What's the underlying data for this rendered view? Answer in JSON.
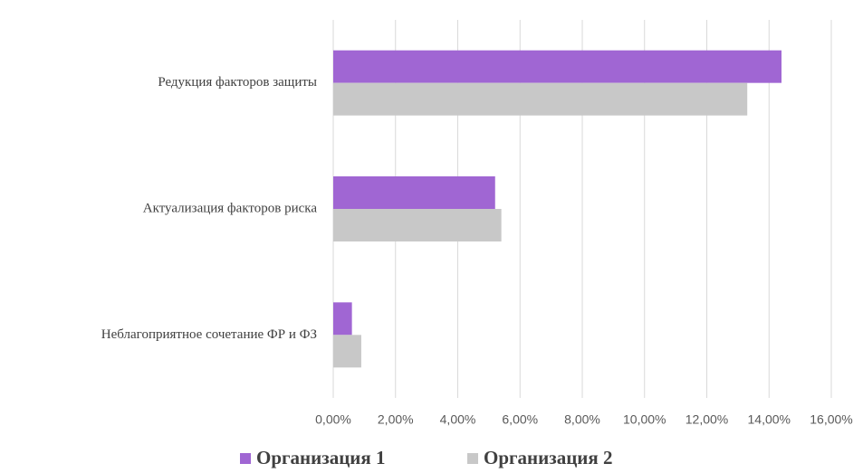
{
  "chart_data": {
    "type": "hbar",
    "categories": [
      "Редукция факторов защиты",
      "Актуализация факторов риска",
      "Неблагоприятное сочетание ФР и ФЗ"
    ],
    "series": [
      {
        "name": "Организация 1",
        "color": "#a066d3",
        "values": [
          14.4,
          5.2,
          0.6
        ]
      },
      {
        "name": "Организация 2",
        "color": "#c8c8c8",
        "values": [
          13.3,
          5.4,
          0.9
        ]
      }
    ],
    "xlim": [
      0,
      16
    ],
    "xticks": [
      {
        "value": 0,
        "label": "0,00%"
      },
      {
        "value": 2,
        "label": "2,00%"
      },
      {
        "value": 4,
        "label": "4,00%"
      },
      {
        "value": 6,
        "label": "6,00%"
      },
      {
        "value": 8,
        "label": "8,00%"
      },
      {
        "value": 10,
        "label": "10,00%"
      },
      {
        "value": 12,
        "label": "12,00%"
      },
      {
        "value": 14,
        "label": "14,00%"
      },
      {
        "value": 16,
        "label": "16,00%"
      }
    ],
    "grid": true,
    "legend": "bottom"
  }
}
